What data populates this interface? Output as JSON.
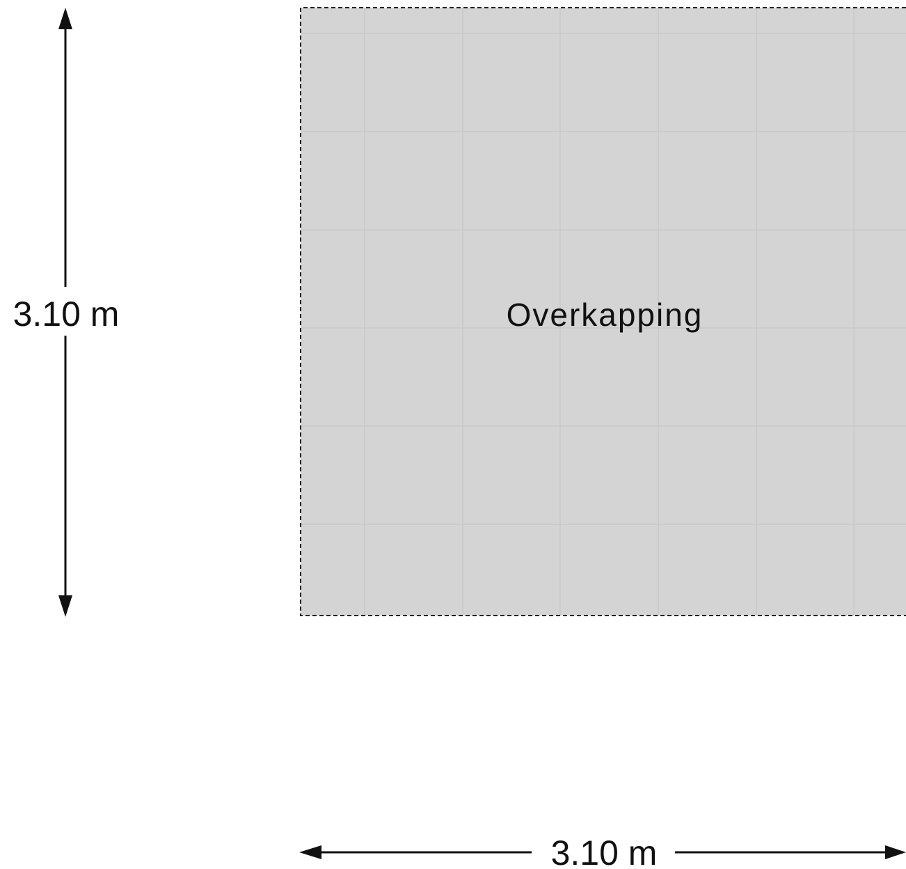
{
  "floorplan": {
    "room": {
      "label": "Overkapping",
      "floor_color": "#d4d4d4",
      "tile_line_color": "#c6c6c6",
      "outline_style": "dashed"
    },
    "dimensions": {
      "vertical": "3.10 m",
      "horizontal": "3.10 m"
    },
    "line_color": "#111111"
  }
}
